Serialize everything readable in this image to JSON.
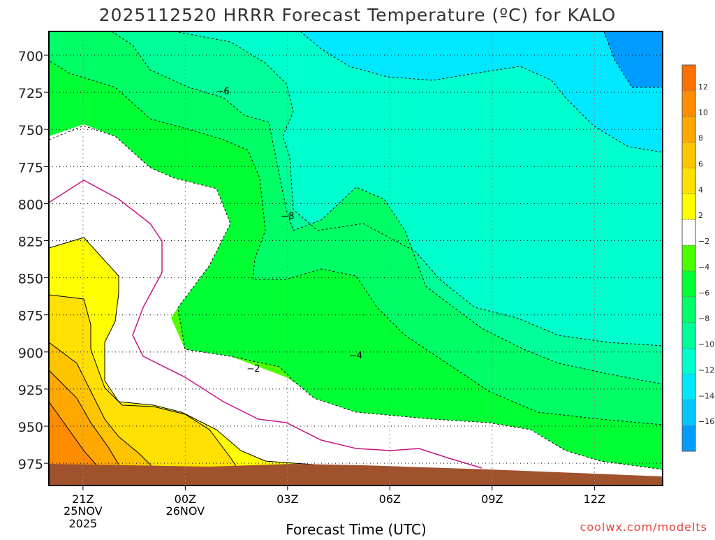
{
  "chart_data": {
    "type": "contour",
    "title": "2025112520 HRRR Forecast Temperature (ºC) for KALO",
    "xlabel": "Forecast Time (UTC)",
    "ylabel": "",
    "x_ticks": [
      {
        "label": "21Z",
        "sub": [
          "25NOV",
          "2025"
        ],
        "hours": 1
      },
      {
        "label": "00Z",
        "sub": [
          "26NOV"
        ],
        "hours": 4
      },
      {
        "label": "03Z",
        "sub": [],
        "hours": 7
      },
      {
        "label": "06Z",
        "sub": [],
        "hours": 10
      },
      {
        "label": "09Z",
        "sub": [],
        "hours": 13
      },
      {
        "label": "12Z",
        "sub": [],
        "hours": 16
      }
    ],
    "xlim_hours": [
      0,
      18
    ],
    "y_ticks": [
      700,
      725,
      750,
      775,
      800,
      825,
      850,
      875,
      900,
      925,
      950,
      975
    ],
    "ylim": [
      684,
      990
    ],
    "y_reversed": true,
    "contour_labels": [
      {
        "text": "−6",
        "hours": 5.1,
        "pressure": 724
      },
      {
        "text": "−8",
        "hours": 7.0,
        "pressure": 808
      },
      {
        "text": "−2",
        "hours": 6.0,
        "pressure": 911
      },
      {
        "text": "−4",
        "hours": 9.0,
        "pressure": 902
      }
    ],
    "colorbar": {
      "levels": [
        12,
        10,
        8,
        6,
        4,
        2,
        -2,
        -4,
        -6,
        -8,
        -10,
        -12,
        -14,
        -16
      ],
      "labels": [
        "12",
        "10",
        "8",
        "6",
        "4",
        "2",
        "−2",
        "−4",
        "−6",
        "−8",
        "−10",
        "−12",
        "−14",
        "−16"
      ],
      "colors": [
        "#ff7000",
        "#ff8c00",
        "#ffa800",
        "#ffc400",
        "#ffe000",
        "#ffff00",
        "#ffffff",
        "#4cff00",
        "#00ff33",
        "#00ff66",
        "#00ff99",
        "#00ffcc",
        "#00e8ff",
        "#00c8ff",
        "#009cff"
      ]
    }
  },
  "watermark": "coolwx.com/modelts",
  "colors": {
    "axis": "#000000",
    "grid": "#000000",
    "ground": "#a0522d",
    "zero_line": "#c71585",
    "watermark": "#e8433a"
  }
}
